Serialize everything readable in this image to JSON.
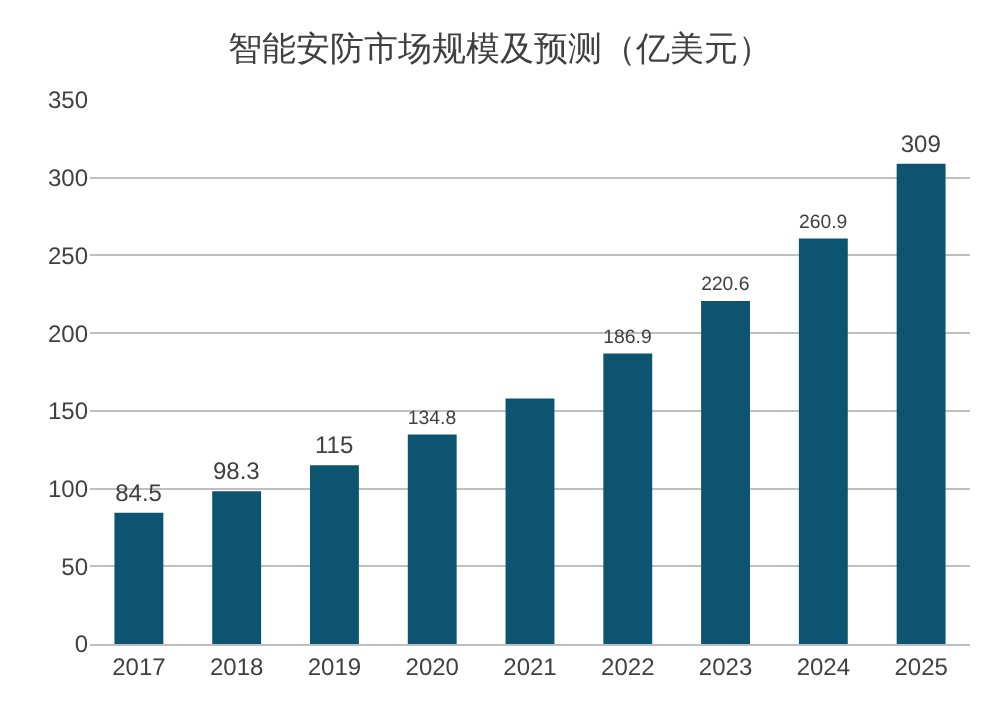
{
  "chart_data": {
    "type": "bar",
    "title": "智能安防市场规模及预测（亿美元）",
    "categories": [
      "2017",
      "2018",
      "2019",
      "2020",
      "2021",
      "2022",
      "2023",
      "2024",
      "2025"
    ],
    "values": [
      84.5,
      98.3,
      115,
      134.8,
      158,
      186.9,
      220.6,
      260.9,
      309
    ],
    "value_labels": [
      "84.5",
      "98.3",
      "115",
      "134.8",
      null,
      "186.9",
      "220.6",
      "260.9",
      "309"
    ],
    "color": "#0d5470",
    "ylim": [
      0,
      350
    ],
    "yticks": [
      0,
      50,
      100,
      150,
      200,
      250,
      300,
      350
    ],
    "grid": "y"
  }
}
